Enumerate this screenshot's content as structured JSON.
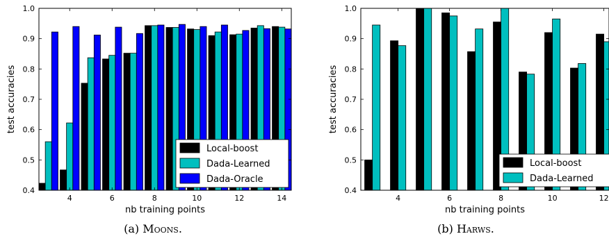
{
  "chart_data": [
    {
      "type": "bar",
      "xlabel": "nb training points",
      "ylabel": "test accuracies",
      "x": [
        3,
        4,
        5,
        6,
        7,
        8,
        9,
        10,
        11,
        12,
        13,
        14
      ],
      "xlim": [
        2.55,
        14.45
      ],
      "ylim": [
        0.4,
        1.0
      ],
      "xticks": [
        "4",
        "6",
        "8",
        "10",
        "12",
        "14"
      ],
      "xtick_values": [
        4,
        6,
        8,
        10,
        12,
        14
      ],
      "yticks": [
        "0.4",
        "0.5",
        "0.6",
        "0.7",
        "0.8",
        "0.9",
        "1.0"
      ],
      "ytick_values": [
        0.4,
        0.5,
        0.6,
        0.7,
        0.8,
        0.9,
        1.0
      ],
      "legend_position": "lower-right",
      "series": [
        {
          "name": "Local-boost",
          "color": "#000000",
          "values": [
            0.423,
            0.467,
            0.753,
            0.833,
            0.852,
            0.943,
            0.937,
            0.932,
            0.91,
            0.913,
            0.935,
            0.94
          ]
        },
        {
          "name": "Dada-Learned",
          "color": "#00bfbf",
          "values": [
            0.56,
            0.622,
            0.837,
            0.845,
            0.852,
            0.943,
            0.937,
            0.93,
            0.922,
            0.915,
            0.943,
            0.938
          ]
        },
        {
          "name": "Dada-Oracle",
          "color": "#0000ff",
          "values": [
            0.922,
            0.94,
            0.912,
            0.938,
            0.917,
            0.945,
            0.947,
            0.94,
            0.945,
            0.927,
            0.933,
            0.932
          ]
        }
      ],
      "caption_label": "(a)",
      "caption_name": "Moons",
      "caption_suffix": "."
    },
    {
      "type": "bar",
      "xlabel": "nb training points",
      "ylabel": "test accuracies",
      "x": [
        3,
        4,
        5,
        6,
        7,
        8,
        9,
        10,
        11,
        12
      ],
      "xlim": [
        2.55,
        12.2
      ],
      "ylim": [
        0.4,
        1.0
      ],
      "xticks": [
        "4",
        "6",
        "8",
        "10",
        "12"
      ],
      "xtick_values": [
        4,
        6,
        8,
        10,
        12
      ],
      "yticks": [
        "0.4",
        "0.5",
        "0.6",
        "0.7",
        "0.8",
        "0.9",
        "1.0"
      ],
      "ytick_values": [
        0.4,
        0.5,
        0.6,
        0.7,
        0.8,
        0.9,
        1.0
      ],
      "legend_position": "lower-right",
      "series": [
        {
          "name": "Local-boost",
          "color": "#000000",
          "values": [
            0.5,
            0.893,
            1.0,
            0.985,
            0.857,
            0.955,
            0.79,
            0.92,
            0.803,
            0.915
          ]
        },
        {
          "name": "Dada-Learned",
          "color": "#00bfbf",
          "values": [
            0.945,
            0.877,
            1.0,
            0.975,
            0.932,
            1.0,
            0.783,
            0.965,
            0.818,
            0.89
          ]
        }
      ],
      "caption_label": "(b)",
      "caption_name": "Harws",
      "caption_suffix": "."
    }
  ]
}
